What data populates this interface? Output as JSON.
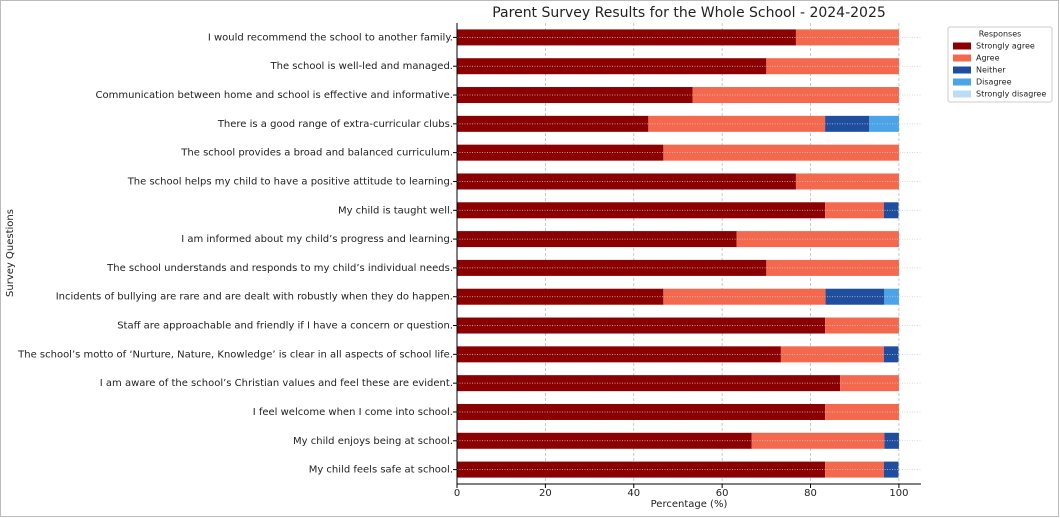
{
  "chart_data": {
    "type": "stacked_barh",
    "title": "Parent Survey Results for the Whole School - 2024-2025",
    "x_label": "Percentage (%)",
    "y_label": "Survey Questions",
    "legend_title": "Responses",
    "legend_position": "outside-upper-right",
    "grid": true,
    "xlim": [
      0,
      105
    ],
    "xticks": [
      0,
      20,
      40,
      60,
      80,
      100
    ],
    "categories": [
      "I would recommend the school to another family.",
      "The school is well-led and managed.",
      "Communication between home and school is effective and informative.",
      "There is a good range of extra-curricular clubs.",
      "The school provides a broad and balanced curriculum.",
      "The school helps my child to have a positive attitude to learning.",
      "My child is taught well.",
      "I am informed about my child’s progress and learning.",
      "The school understands and responds to my child’s individual needs.",
      "Incidents of bullying are rare and are dealt with robustly when they do happen.",
      "Staff are approachable and friendly if I have a concern or question.",
      "The school’s motto of ‘Nurture, Nature, Knowledge’ is clear in all aspects of school life.",
      "I am aware of the school’s Christian values and feel these are evident.",
      "I feel welcome when I come into school.",
      "My child enjoys being at school.",
      "My child feels safe at school."
    ],
    "series": [
      {
        "name": "Strongly agree",
        "color": "#8b0000",
        "values": [
          76.7,
          70.0,
          53.3,
          43.3,
          46.7,
          76.7,
          83.3,
          63.3,
          70.0,
          46.7,
          83.3,
          73.3,
          86.7,
          83.3,
          66.7,
          83.3
        ]
      },
      {
        "name": "Agree",
        "color": "#f4694e",
        "values": [
          23.3,
          30.0,
          46.7,
          40.0,
          53.3,
          23.3,
          13.3,
          36.7,
          30.0,
          36.7,
          16.7,
          23.3,
          13.3,
          16.7,
          30.0,
          13.3
        ]
      },
      {
        "name": "Neither",
        "color": "#1f4e9e",
        "values": [
          0,
          0,
          0,
          10.0,
          0,
          0,
          3.3,
          0,
          0,
          13.3,
          0,
          3.3,
          0,
          0,
          3.3,
          3.3
        ]
      },
      {
        "name": "Disagree",
        "color": "#4ba3e8",
        "values": [
          0,
          0,
          0,
          6.7,
          0,
          0,
          0,
          0,
          0,
          3.3,
          0,
          0,
          0,
          0,
          0,
          0
        ]
      },
      {
        "name": "Strongly disagree",
        "color": "#bcdcf5",
        "values": [
          0,
          0,
          0,
          0,
          0,
          0,
          0,
          0,
          0,
          0,
          0,
          0,
          0,
          0,
          0,
          0
        ]
      }
    ]
  }
}
